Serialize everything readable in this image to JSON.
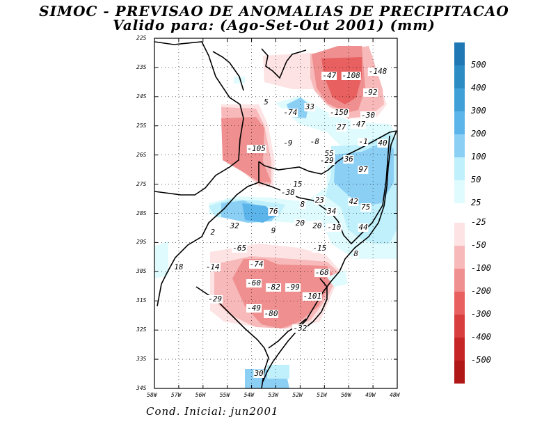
{
  "title": "SIMOC - PREVISAO DE ANOMALIAS DE PRECIPITACAO",
  "subtitle": "Valido para: (Ago-Set-Out 2001) (mm)",
  "footer": "Cond. Inicial: jun2001",
  "map_extent": {
    "lon": [
      -58,
      -48
    ],
    "lat": [
      -34,
      -22
    ]
  },
  "lat_ticks": [
    "22S",
    "23S",
    "24S",
    "25S",
    "26S",
    "27S",
    "28S",
    "29S",
    "30S",
    "31S",
    "32S",
    "33S",
    "34S"
  ],
  "lon_ticks": [
    "58W",
    "57W",
    "56W",
    "55W",
    "54W",
    "53W",
    "52W",
    "51W",
    "50W",
    "49W",
    "48W"
  ],
  "legend": {
    "positive": [
      {
        "label": "500",
        "color": "#1f78b4"
      },
      {
        "label": "400",
        "color": "#2b8cc4"
      },
      {
        "label": "300",
        "color": "#3fa0d8"
      },
      {
        "label": "200",
        "color": "#5cb5ea"
      },
      {
        "label": "100",
        "color": "#8ccff5"
      },
      {
        "label": "50",
        "color": "#bff0fb"
      },
      {
        "label": "25",
        "color": "#e0fbfd"
      }
    ],
    "negative": [
      {
        "label": "-25",
        "color": "#fde3e3"
      },
      {
        "label": "-50",
        "color": "#f7b9b9"
      },
      {
        "label": "-100",
        "color": "#ef8f8f"
      },
      {
        "label": "-200",
        "color": "#e86060"
      },
      {
        "label": "-300",
        "color": "#d93e3e"
      },
      {
        "label": "-400",
        "color": "#c62626"
      },
      {
        "label": "-500",
        "color": "#b01818"
      }
    ]
  },
  "anomaly_labels": [
    {
      "value": "-47",
      "lon": -50.8,
      "lat": -23.3
    },
    {
      "value": "-108",
      "lon": -49.9,
      "lat": -23.3
    },
    {
      "value": "-148",
      "lon": -48.8,
      "lat": -23.15
    },
    {
      "value": "-92",
      "lon": -49.1,
      "lat": -23.85
    },
    {
      "value": "5",
      "lon": -53.4,
      "lat": -24.2
    },
    {
      "value": "33",
      "lon": -51.6,
      "lat": -24.35
    },
    {
      "value": "-74",
      "lon": -52.4,
      "lat": -24.55
    },
    {
      "value": "-150",
      "lon": -50.4,
      "lat": -24.55
    },
    {
      "value": "-30",
      "lon": -49.2,
      "lat": -24.65
    },
    {
      "value": "-47",
      "lon": -49.6,
      "lat": -24.95
    },
    {
      "value": "27",
      "lon": -50.3,
      "lat": -25.05
    },
    {
      "value": "-105",
      "lon": -53.8,
      "lat": -25.8
    },
    {
      "value": "-9",
      "lon": -52.5,
      "lat": -25.6
    },
    {
      "value": "-8",
      "lon": -51.4,
      "lat": -25.55
    },
    {
      "value": "-1",
      "lon": -49.4,
      "lat": -25.55
    },
    {
      "value": "40",
      "lon": -48.6,
      "lat": -25.6
    },
    {
      "value": "55",
      "lon": -50.8,
      "lat": -25.95
    },
    {
      "value": "36",
      "lon": -50.0,
      "lat": -26.15
    },
    {
      "value": "-29",
      "lon": -50.9,
      "lat": -26.2
    },
    {
      "value": "97",
      "lon": -49.4,
      "lat": -26.5
    },
    {
      "value": "15",
      "lon": -52.1,
      "lat": -27.0
    },
    {
      "value": "-38",
      "lon": -52.5,
      "lat": -27.3
    },
    {
      "value": "23",
      "lon": -51.2,
      "lat": -27.55
    },
    {
      "value": "8",
      "lon": -51.9,
      "lat": -27.7
    },
    {
      "value": "42",
      "lon": -49.8,
      "lat": -27.6
    },
    {
      "value": "75",
      "lon": -49.3,
      "lat": -27.8
    },
    {
      "value": "34",
      "lon": -50.7,
      "lat": -27.95
    },
    {
      "value": "76",
      "lon": -53.1,
      "lat": -27.95
    },
    {
      "value": "32",
      "lon": -54.7,
      "lat": -28.45
    },
    {
      "value": "9",
      "lon": -53.1,
      "lat": -28.6
    },
    {
      "value": "20",
      "lon": -52.0,
      "lat": -28.35
    },
    {
      "value": "20",
      "lon": -51.3,
      "lat": -28.45
    },
    {
      "value": "-10",
      "lon": -50.6,
      "lat": -28.5
    },
    {
      "value": "44",
      "lon": -49.4,
      "lat": -28.5
    },
    {
      "value": "2",
      "lon": -55.6,
      "lat": -28.65
    },
    {
      "value": "-65",
      "lon": -54.5,
      "lat": -29.2
    },
    {
      "value": "-15",
      "lon": -51.2,
      "lat": -29.2
    },
    {
      "value": "8",
      "lon": -49.7,
      "lat": -29.4
    },
    {
      "value": "18",
      "lon": -57.0,
      "lat": -29.85
    },
    {
      "value": "-14",
      "lon": -55.6,
      "lat": -29.85
    },
    {
      "value": "-74",
      "lon": -53.8,
      "lat": -29.75
    },
    {
      "value": "-68",
      "lon": -51.1,
      "lat": -30.05
    },
    {
      "value": "-60",
      "lon": -53.9,
      "lat": -30.4
    },
    {
      "value": "-82",
      "lon": -53.1,
      "lat": -30.55
    },
    {
      "value": "-99",
      "lon": -52.3,
      "lat": -30.55
    },
    {
      "value": "-101",
      "lon": -51.5,
      "lat": -30.85
    },
    {
      "value": "-29",
      "lon": -55.5,
      "lat": -30.95
    },
    {
      "value": "-49",
      "lon": -53.9,
      "lat": -31.25
    },
    {
      "value": "-80",
      "lon": -53.2,
      "lat": -31.45
    },
    {
      "value": "-32",
      "lon": -52.0,
      "lat": -31.95
    },
    {
      "value": "30",
      "lon": -53.7,
      "lat": -33.5
    }
  ]
}
